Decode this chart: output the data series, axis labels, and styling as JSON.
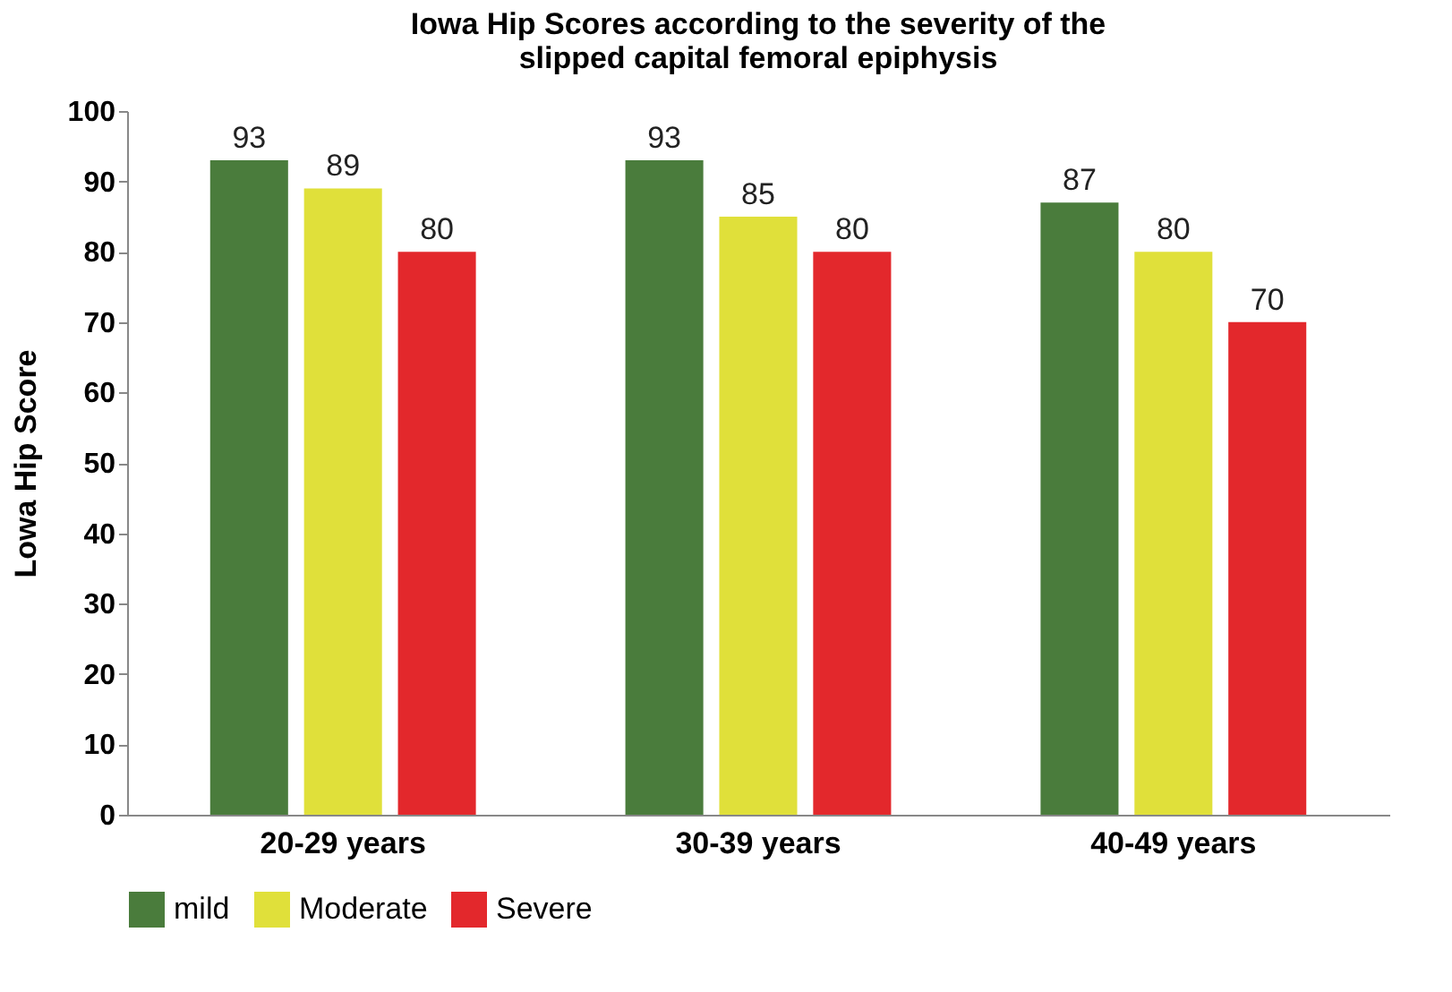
{
  "chart_data": {
    "type": "bar",
    "title": "Iowa Hip Scores according to the severity of the slipped capital femoral epiphysis",
    "ylabel": "Lowa Hip Score",
    "categories": [
      "20-29 years",
      "30-39 years",
      "40-49 years"
    ],
    "series": [
      {
        "name": "mild",
        "color": "#4a7c3c",
        "values": [
          93,
          93,
          87
        ]
      },
      {
        "name": "Moderate",
        "color": "#e0e03a",
        "values": [
          89,
          85,
          80
        ]
      },
      {
        "name": "Severe",
        "color": "#e3282c",
        "values": [
          80,
          80,
          70
        ]
      }
    ],
    "ylim": [
      0,
      100
    ],
    "yticks": [
      0,
      10,
      20,
      30,
      40,
      50,
      60,
      70,
      80,
      90,
      100
    ],
    "grid": false,
    "legend": "bottom",
    "data_labels": true
  }
}
